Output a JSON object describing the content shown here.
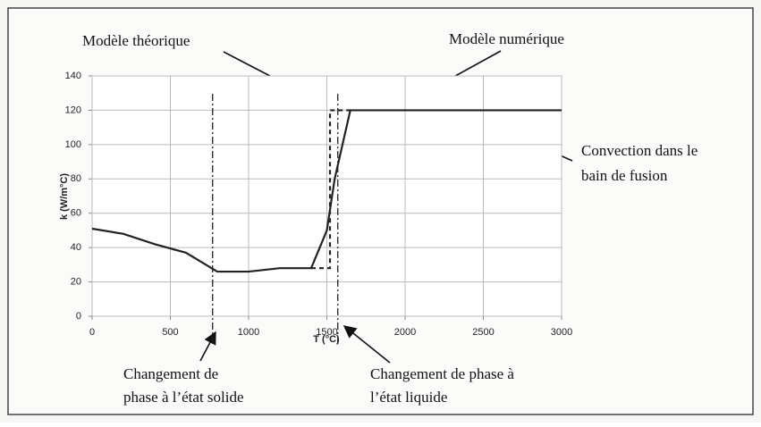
{
  "chart_data": {
    "type": "line",
    "xlabel": "T (°C)",
    "ylabel": "k (W/m°C)",
    "xlim": [
      0,
      3000
    ],
    "ylim": [
      0,
      140
    ],
    "xticks": [
      0,
      500,
      1000,
      1500,
      2000,
      2500,
      3000
    ],
    "yticks": [
      0,
      20,
      40,
      60,
      80,
      100,
      120,
      140
    ],
    "grid": true,
    "series": [
      {
        "name": "Modèle numérique",
        "color": "#222222",
        "style": "solid",
        "x": [
          0,
          200,
          400,
          600,
          800,
          1000,
          1200,
          1400,
          1500,
          1550,
          1650,
          3000
        ],
        "values": [
          51,
          48,
          42,
          37,
          26,
          26,
          28,
          28,
          50,
          80,
          120,
          120
        ]
      },
      {
        "name": "Modèle théorique",
        "color": "#222222",
        "style": "dashed",
        "x": [
          1400,
          1520,
          1520,
          1650
        ],
        "values": [
          28,
          28,
          120,
          120
        ]
      }
    ],
    "phase_lines": [
      770,
      1570
    ],
    "annotations": [
      "Modèle théorique",
      "Modèle numérique",
      "Convection dans le",
      "bain de fusion",
      "Changement de",
      "phase à l’état solide",
      "Changement de phase à",
      "l’état liquide"
    ]
  }
}
